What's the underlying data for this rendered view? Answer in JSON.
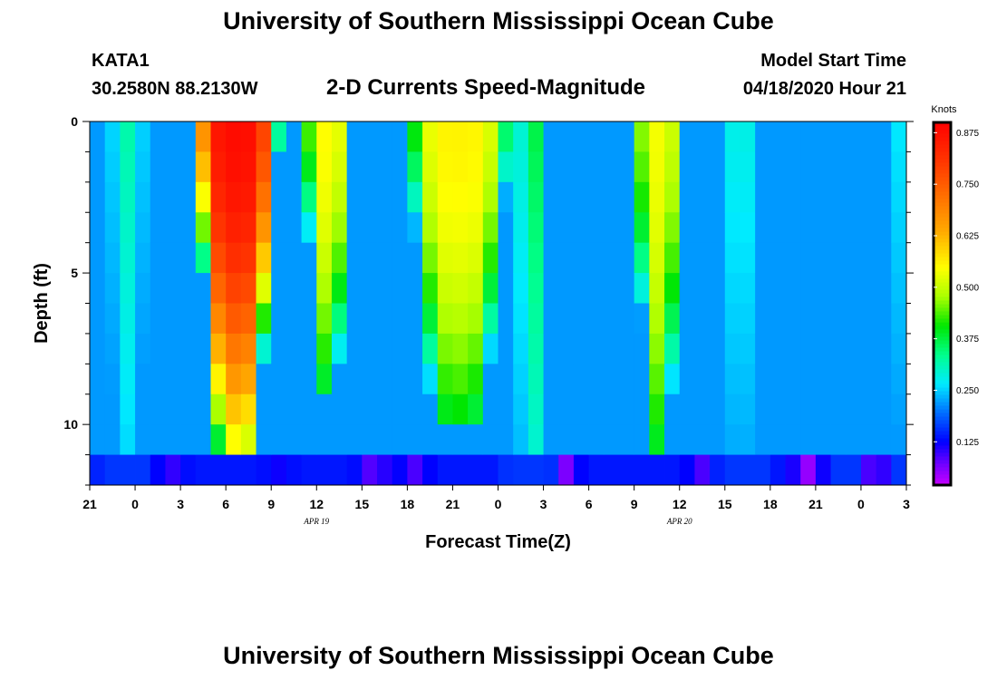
{
  "header": {
    "title": "University of Southern Mississippi Ocean Cube",
    "station": "KATA1",
    "coords": "30.2580N 88.2130W",
    "subtitle": "2-D Currents Speed-Magnitude",
    "model_start_label": "Model Start Time",
    "model_start_value": "04/18/2020 Hour 21"
  },
  "footer": {
    "title": "University of Southern Mississippi Ocean Cube"
  },
  "chart_data": {
    "type": "heatmap",
    "title": "2-D Currents Speed-Magnitude",
    "xlabel": "Forecast Time(Z)",
    "ylabel": "Depth (ft)",
    "x_start_hour": 21,
    "x_end_hour": 75,
    "x_tick_labels": [
      "21",
      "0",
      "3",
      "6",
      "9",
      "12",
      "15",
      "18",
      "21",
      "0",
      "3",
      "6",
      "9",
      "12",
      "15",
      "18",
      "21",
      "0",
      "3"
    ],
    "date_labels": [
      {
        "hour": 36,
        "label": "APR 19"
      },
      {
        "hour": 60,
        "label": "APR 20"
      }
    ],
    "ylim": [
      0,
      12
    ],
    "y_tick_labels": [
      "0",
      "5",
      "10"
    ],
    "y_ticks": [
      0,
      5,
      10
    ],
    "colorbar": {
      "label": "Knots",
      "range": [
        0.02,
        0.9
      ],
      "ticks": [
        "0.875",
        "0.750",
        "0.625",
        "0.500",
        "0.375",
        "0.250",
        "0.125"
      ],
      "tick_values": [
        0.875,
        0.75,
        0.625,
        0.5,
        0.375,
        0.25,
        0.125
      ]
    },
    "grid_note": "speed in knots; rows = depth levels (approx. 0.5 ft to 11.5 ft), columns = forecast hours",
    "events": [
      {
        "center_hour": 30.7,
        "peak": 0.88,
        "half_width_hours": 3.0,
        "depth_extent_ft": 11.0
      },
      {
        "center_hour": 36.7,
        "peak": 0.55,
        "half_width_hours": 1.6,
        "depth_extent_ft": 9.0
      },
      {
        "center_hour": 45.4,
        "peak": 0.56,
        "half_width_hours": 3.6,
        "depth_extent_ft": 10.5
      },
      {
        "center_hour": 58.6,
        "peak": 0.54,
        "half_width_hours": 1.6,
        "depth_extent_ft": 11.5
      }
    ],
    "shoulders": [
      {
        "center_hour": 23.5,
        "peak": 0.32
      },
      {
        "center_hour": 50.5,
        "peak": 0.38
      },
      {
        "center_hour": 64.0,
        "peak": 0.3
      },
      {
        "center_hour": 71.0,
        "peak": 0.22
      },
      {
        "center_hour": 74.5,
        "peak": 0.28
      }
    ],
    "minima": [
      {
        "center_hour": 26.3,
        "value": 0.1
      },
      {
        "center_hour": 33.5,
        "value": 0.12
      },
      {
        "center_hour": 39.8,
        "value": 0.08
      },
      {
        "center_hour": 42.5,
        "value": 0.09
      },
      {
        "center_hour": 52.3,
        "value": 0.06
      },
      {
        "center_hour": 61.5,
        "value": 0.09
      },
      {
        "center_hour": 68.5,
        "value": 0.05
      },
      {
        "center_hour": 73.0,
        "value": 0.07
      }
    ]
  }
}
